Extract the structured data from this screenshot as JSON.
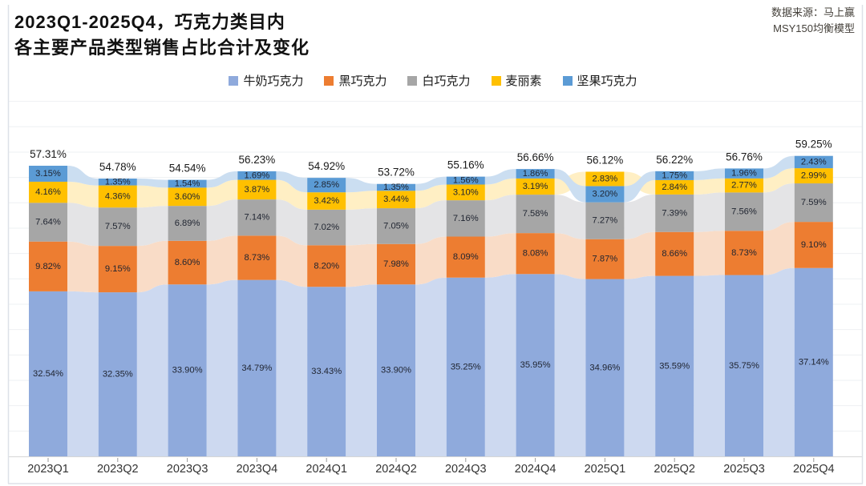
{
  "header": {
    "title_line1": "2023Q1-2025Q4，巧克力类目内",
    "title_line2": "各主要产品类型销售占比合计及变化",
    "source_line1": "数据来源：马上赢",
    "source_line2": "MSY150均衡模型"
  },
  "chart_data": {
    "type": "bar",
    "variant": "stacked-columns-with-smoothed-area-ribbons",
    "legend_position": "top-center",
    "value_format": "0.00%",
    "ylim": [
      0,
      70
    ],
    "gridline_interval": 5,
    "categories": [
      "2023Q1",
      "2023Q2",
      "2023Q3",
      "2023Q4",
      "2024Q1",
      "2024Q2",
      "2024Q3",
      "2024Q4",
      "2025Q1",
      "2025Q2",
      "2025Q3",
      "2025Q4"
    ],
    "series": [
      {
        "id": "milk",
        "name": "牛奶巧克力",
        "color": "#8FAADC",
        "ribbon_color": "#CDD9F0",
        "values": [
          32.54,
          32.35,
          33.9,
          34.79,
          33.43,
          33.9,
          35.25,
          35.95,
          34.96,
          35.59,
          35.75,
          37.14
        ]
      },
      {
        "id": "dark",
        "name": "黑巧克力",
        "color": "#ED7D31",
        "ribbon_color": "#F9DCC7",
        "values": [
          9.82,
          9.15,
          8.6,
          8.73,
          8.2,
          7.98,
          8.09,
          8.08,
          7.87,
          8.66,
          8.73,
          9.1
        ]
      },
      {
        "id": "white",
        "name": "白巧克力",
        "color": "#A6A6A6",
        "ribbon_color": "#E4E4E6",
        "values": [
          7.64,
          7.57,
          6.89,
          7.14,
          7.02,
          7.05,
          7.16,
          7.58,
          7.27,
          7.39,
          7.56,
          7.59
        ]
      },
      {
        "id": "malt",
        "name": "麦丽素",
        "color": "#FFC000",
        "ribbon_color": "#FFEFC4",
        "values": [
          4.16,
          4.36,
          3.6,
          3.87,
          3.42,
          3.44,
          3.1,
          3.19,
          2.83,
          2.84,
          2.77,
          2.99
        ]
      },
      {
        "id": "nut",
        "name": "坚果巧克力",
        "color": "#5B9BD5",
        "ribbon_color": "#CBDEF1",
        "values": [
          3.15,
          1.35,
          1.54,
          1.69,
          2.85,
          1.35,
          1.56,
          1.86,
          3.2,
          1.75,
          1.96,
          2.43
        ]
      }
    ],
    "totals": [
      57.31,
      54.78,
      54.54,
      56.23,
      54.92,
      53.72,
      55.16,
      56.66,
      56.12,
      56.22,
      56.76,
      59.25
    ],
    "stack_order_default": [
      "milk",
      "dark",
      "white",
      "malt",
      "nut"
    ],
    "stack_order_overrides": {
      "2025Q1": [
        "milk",
        "dark",
        "white",
        "nut",
        "malt"
      ]
    },
    "ribbon_draw_order": [
      "milk",
      "dark",
      "white",
      "malt",
      "nut"
    ]
  },
  "colors": {
    "gridline": "#eef0f3",
    "axis_line": "#d6d6d6",
    "tick": "#9a9a9a",
    "frame": "#dde1e8",
    "total_label": "#1a1a1a",
    "segment_label": "#1f2430",
    "axis_label": "#333333"
  }
}
